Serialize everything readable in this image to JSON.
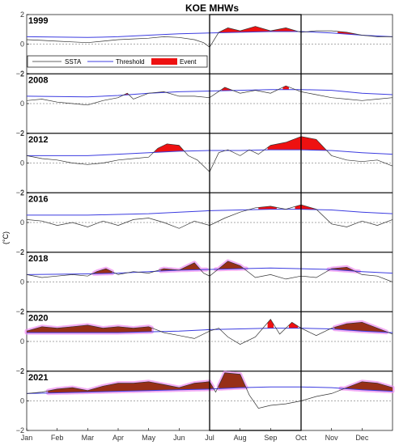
{
  "chart_data": {
    "type": "area",
    "title": "KOE MHWs",
    "ylabel": "(°C)",
    "ylim": [
      -2,
      2
    ],
    "yticks": [
      -2,
      0,
      2
    ],
    "x_ticklabels": [
      "Jan",
      "Feb",
      "Mar",
      "Apr",
      "May",
      "Jun",
      "Jul",
      "Aug",
      "Sep",
      "Oct",
      "Nov",
      "Dec"
    ],
    "legend": [
      "SSTA",
      "Threshold",
      "Event"
    ],
    "legend_position": "inside-left (first panel)",
    "highlight_box": {
      "from": "Jul",
      "to": "Oct"
    },
    "colors": {
      "ssta": "#333333",
      "threshold": "#3c3ce0",
      "event": "#ee1111",
      "event_overlay": "#7a3a1a",
      "halo": "#f08cf0"
    },
    "x_unit": "month (0 = Jan 1, 12 = Dec 31)",
    "panels": [
      {
        "year": "1999",
        "ssta": [
          [
            0,
            0.3
          ],
          [
            0.5,
            0.25
          ],
          [
            1,
            0.2
          ],
          [
            1.5,
            0.15
          ],
          [
            2,
            0.1
          ],
          [
            2.5,
            0.2
          ],
          [
            3,
            0.3
          ],
          [
            3.5,
            0.35
          ],
          [
            4,
            0.4
          ],
          [
            4.5,
            0.5
          ],
          [
            5,
            0.45
          ],
          [
            5.5,
            0.3
          ],
          [
            5.8,
            0.1
          ],
          [
            6,
            -0.2
          ],
          [
            6.3,
            0.8
          ],
          [
            6.6,
            1.1
          ],
          [
            7,
            0.9
          ],
          [
            7.5,
            1.2
          ],
          [
            8,
            0.9
          ],
          [
            8.5,
            1.1
          ],
          [
            9,
            0.8
          ],
          [
            9.5,
            0.9
          ],
          [
            10,
            0.9
          ],
          [
            10.5,
            0.8
          ],
          [
            11,
            0.6
          ],
          [
            11.5,
            0.5
          ],
          [
            12,
            0.5
          ]
        ],
        "threshold": [
          [
            0,
            0.5
          ],
          [
            2,
            0.45
          ],
          [
            3,
            0.5
          ],
          [
            4,
            0.6
          ],
          [
            5,
            0.7
          ],
          [
            6,
            0.75
          ],
          [
            7,
            0.8
          ],
          [
            8,
            0.85
          ],
          [
            9,
            0.85
          ],
          [
            10,
            0.75
          ],
          [
            11,
            0.6
          ],
          [
            12,
            0.5
          ]
        ],
        "events": [
          {
            "from": 6.3,
            "to": 9.1
          },
          {
            "from": 10.2,
            "to": 10.8
          }
        ],
        "overlay": []
      },
      {
        "year": "2008",
        "ssta": [
          [
            0,
            0.2
          ],
          [
            0.5,
            0.3
          ],
          [
            1,
            0.1
          ],
          [
            1.5,
            0.0
          ],
          [
            2,
            -0.1
          ],
          [
            2.5,
            0.2
          ],
          [
            3,
            0.4
          ],
          [
            3.3,
            0.7
          ],
          [
            3.5,
            0.3
          ],
          [
            4,
            0.7
          ],
          [
            4.5,
            0.8
          ],
          [
            5,
            0.5
          ],
          [
            5.5,
            0.5
          ],
          [
            6,
            0.4
          ],
          [
            6.5,
            1.1
          ],
          [
            7,
            0.7
          ],
          [
            7.5,
            0.9
          ],
          [
            8,
            0.7
          ],
          [
            8.5,
            1.2
          ],
          [
            9,
            0.8
          ],
          [
            9.5,
            0.6
          ],
          [
            10,
            0.4
          ],
          [
            10.5,
            0.3
          ],
          [
            11,
            0.2
          ],
          [
            11.5,
            0.3
          ],
          [
            12,
            0.4
          ]
        ],
        "threshold": [
          [
            0,
            0.5
          ],
          [
            2,
            0.45
          ],
          [
            3,
            0.55
          ],
          [
            4,
            0.7
          ],
          [
            5,
            0.8
          ],
          [
            6,
            0.85
          ],
          [
            7,
            0.9
          ],
          [
            8,
            0.95
          ],
          [
            9,
            0.95
          ],
          [
            10,
            0.9
          ],
          [
            11,
            0.7
          ],
          [
            12,
            0.6
          ]
        ],
        "events": [
          {
            "from": 3.2,
            "to": 3.4
          },
          {
            "from": 4.3,
            "to": 4.7
          },
          {
            "from": 6.4,
            "to": 6.9
          },
          {
            "from": 8.4,
            "to": 8.6
          }
        ],
        "overlay": []
      },
      {
        "year": "2012",
        "ssta": [
          [
            0,
            0.5
          ],
          [
            0.5,
            0.3
          ],
          [
            1,
            0.2
          ],
          [
            1.5,
            0.0
          ],
          [
            2,
            -0.1
          ],
          [
            2.5,
            0.0
          ],
          [
            3,
            0.2
          ],
          [
            3.5,
            0.3
          ],
          [
            4,
            0.4
          ],
          [
            4.3,
            1.0
          ],
          [
            4.6,
            1.3
          ],
          [
            5,
            1.2
          ],
          [
            5.3,
            0.5
          ],
          [
            5.6,
            0.2
          ],
          [
            6,
            -0.6
          ],
          [
            6.3,
            0.7
          ],
          [
            6.6,
            0.9
          ],
          [
            7,
            0.5
          ],
          [
            7.3,
            0.9
          ],
          [
            7.6,
            0.6
          ],
          [
            8,
            1.2
          ],
          [
            8.5,
            1.4
          ],
          [
            9,
            1.8
          ],
          [
            9.5,
            1.6
          ],
          [
            10,
            0.5
          ],
          [
            10.5,
            0.2
          ],
          [
            11,
            0.1
          ],
          [
            11.5,
            0.2
          ],
          [
            12,
            -0.2
          ]
        ],
        "threshold": [
          [
            0,
            0.5
          ],
          [
            2,
            0.5
          ],
          [
            3,
            0.6
          ],
          [
            4,
            0.7
          ],
          [
            5,
            0.8
          ],
          [
            6,
            0.85
          ],
          [
            7,
            0.85
          ],
          [
            8,
            0.9
          ],
          [
            9,
            0.9
          ],
          [
            10,
            0.85
          ],
          [
            11,
            0.7
          ],
          [
            12,
            0.6
          ]
        ],
        "events": [
          {
            "from": 4.2,
            "to": 5.2
          },
          {
            "from": 6.3,
            "to": 6.7
          },
          {
            "from": 7.9,
            "to": 9.9
          }
        ],
        "overlay": []
      },
      {
        "year": "2016",
        "ssta": [
          [
            0,
            0.2
          ],
          [
            0.5,
            0.1
          ],
          [
            1,
            -0.2
          ],
          [
            1.5,
            0.0
          ],
          [
            2,
            -0.3
          ],
          [
            2.5,
            0.1
          ],
          [
            3,
            -0.2
          ],
          [
            3.5,
            0.2
          ],
          [
            4,
            0.3
          ],
          [
            4.5,
            0.0
          ],
          [
            5,
            -0.4
          ],
          [
            5.5,
            0.1
          ],
          [
            6,
            -0.2
          ],
          [
            6.5,
            0.3
          ],
          [
            7,
            0.7
          ],
          [
            7.5,
            1.0
          ],
          [
            8,
            1.1
          ],
          [
            8.5,
            0.9
          ],
          [
            9,
            1.2
          ],
          [
            9.5,
            0.9
          ],
          [
            10,
            -0.1
          ],
          [
            10.5,
            -0.3
          ],
          [
            11,
            0.1
          ],
          [
            11.5,
            -0.2
          ],
          [
            12,
            0.2
          ]
        ],
        "threshold": [
          [
            0,
            0.5
          ],
          [
            2,
            0.5
          ],
          [
            3,
            0.55
          ],
          [
            4,
            0.6
          ],
          [
            5,
            0.7
          ],
          [
            6,
            0.8
          ],
          [
            7,
            0.85
          ],
          [
            8,
            0.9
          ],
          [
            9,
            0.9
          ],
          [
            10,
            0.85
          ],
          [
            11,
            0.7
          ],
          [
            12,
            0.6
          ]
        ],
        "events": [
          {
            "from": 7.6,
            "to": 8.2
          },
          {
            "from": 8.8,
            "to": 9.6
          }
        ],
        "overlay": []
      },
      {
        "year": "2018",
        "ssta": [
          [
            0,
            0.5
          ],
          [
            0.5,
            0.3
          ],
          [
            1,
            0.4
          ],
          [
            1.5,
            0.5
          ],
          [
            2,
            0.4
          ],
          [
            2.3,
            0.7
          ],
          [
            2.6,
            0.9
          ],
          [
            3,
            0.5
          ],
          [
            3.5,
            0.7
          ],
          [
            4,
            0.6
          ],
          [
            4.5,
            0.9
          ],
          [
            5,
            0.8
          ],
          [
            5.5,
            1.3
          ],
          [
            5.8,
            0.6
          ],
          [
            6,
            0.4
          ],
          [
            6.3,
            0.9
          ],
          [
            6.6,
            1.4
          ],
          [
            7,
            1.1
          ],
          [
            7.5,
            0.3
          ],
          [
            8,
            0.5
          ],
          [
            8.5,
            0.2
          ],
          [
            9,
            0.4
          ],
          [
            9.5,
            0.3
          ],
          [
            10,
            0.9
          ],
          [
            10.5,
            1.0
          ],
          [
            11,
            0.5
          ],
          [
            11.5,
            0.4
          ],
          [
            12,
            0.0
          ]
        ],
        "threshold": [
          [
            0,
            0.5
          ],
          [
            2,
            0.55
          ],
          [
            3,
            0.6
          ],
          [
            4,
            0.7
          ],
          [
            5,
            0.8
          ],
          [
            6,
            0.85
          ],
          [
            7,
            0.9
          ],
          [
            8,
            0.95
          ],
          [
            9,
            0.9
          ],
          [
            10,
            0.85
          ],
          [
            11,
            0.7
          ],
          [
            12,
            0.6
          ]
        ],
        "events": [
          {
            "from": 2.2,
            "to": 2.8
          },
          {
            "from": 4.4,
            "to": 5.9
          },
          {
            "from": 6.2,
            "to": 7.2
          },
          {
            "from": 9.9,
            "to": 10.9
          }
        ],
        "overlay": [
          {
            "from": 2.2,
            "to": 2.8
          },
          {
            "from": 4.4,
            "to": 5.9
          },
          {
            "from": 6.2,
            "to": 7.2
          },
          {
            "from": 9.9,
            "to": 10.9
          }
        ]
      },
      {
        "year": "2020",
        "ssta": [
          [
            0,
            0.7
          ],
          [
            0.5,
            1.0
          ],
          [
            1,
            0.9
          ],
          [
            1.5,
            1.0
          ],
          [
            2,
            1.1
          ],
          [
            2.5,
            0.9
          ],
          [
            3,
            1.0
          ],
          [
            3.5,
            0.9
          ],
          [
            4,
            1.0
          ],
          [
            4.5,
            0.6
          ],
          [
            5,
            0.4
          ],
          [
            5.5,
            0.2
          ],
          [
            6,
            0.7
          ],
          [
            6.3,
            0.9
          ],
          [
            6.6,
            0.3
          ],
          [
            7,
            -0.2
          ],
          [
            7.5,
            0.3
          ],
          [
            8,
            1.5
          ],
          [
            8.3,
            0.5
          ],
          [
            8.7,
            1.3
          ],
          [
            9,
            0.9
          ],
          [
            9.5,
            0.4
          ],
          [
            10,
            0.9
          ],
          [
            10.5,
            1.2
          ],
          [
            11,
            1.3
          ],
          [
            11.5,
            0.9
          ],
          [
            12,
            0.5
          ]
        ],
        "threshold": [
          [
            0,
            0.6
          ],
          [
            2,
            0.6
          ],
          [
            3,
            0.6
          ],
          [
            4,
            0.65
          ],
          [
            5,
            0.7
          ],
          [
            6,
            0.8
          ],
          [
            7,
            0.85
          ],
          [
            8,
            0.9
          ],
          [
            9,
            0.9
          ],
          [
            10,
            0.85
          ],
          [
            11,
            0.7
          ],
          [
            12,
            0.6
          ]
        ],
        "events": [
          {
            "from": 0,
            "to": 4.1
          },
          {
            "from": 7.9,
            "to": 8.1
          },
          {
            "from": 8.6,
            "to": 8.9
          },
          {
            "from": 10.1,
            "to": 11.8
          }
        ],
        "overlay": [
          {
            "from": 0,
            "to": 4.1
          },
          {
            "from": 10.1,
            "to": 11.8
          }
        ]
      },
      {
        "year": "2021",
        "ssta": [
          [
            0,
            0.5
          ],
          [
            0.5,
            0.6
          ],
          [
            1,
            0.8
          ],
          [
            1.5,
            0.9
          ],
          [
            2,
            0.7
          ],
          [
            2.5,
            1.0
          ],
          [
            3,
            1.2
          ],
          [
            3.5,
            1.2
          ],
          [
            4,
            1.3
          ],
          [
            4.5,
            1.1
          ],
          [
            5,
            0.9
          ],
          [
            5.5,
            1.2
          ],
          [
            6,
            1.3
          ],
          [
            6.2,
            0.6
          ],
          [
            6.5,
            1.9
          ],
          [
            7,
            1.8
          ],
          [
            7.3,
            0.4
          ],
          [
            7.6,
            -0.5
          ],
          [
            8,
            -0.3
          ],
          [
            8.5,
            -0.2
          ],
          [
            9,
            0.0
          ],
          [
            9.5,
            0.3
          ],
          [
            10,
            0.5
          ],
          [
            10.5,
            0.9
          ],
          [
            11,
            1.3
          ],
          [
            11.5,
            1.2
          ],
          [
            12,
            0.9
          ]
        ],
        "threshold": [
          [
            0,
            0.5
          ],
          [
            1,
            0.55
          ],
          [
            2,
            0.6
          ],
          [
            3,
            0.65
          ],
          [
            4,
            0.7
          ],
          [
            5,
            0.75
          ],
          [
            6,
            0.8
          ],
          [
            7,
            0.9
          ],
          [
            8,
            0.95
          ],
          [
            9,
            0.95
          ],
          [
            10,
            0.9
          ],
          [
            11,
            0.75
          ],
          [
            12,
            0.65
          ]
        ],
        "events": [
          {
            "from": 0.7,
            "to": 6.1
          },
          {
            "from": 6.3,
            "to": 7.2
          },
          {
            "from": 10.3,
            "to": 12
          }
        ],
        "overlay": [
          {
            "from": 0.7,
            "to": 6.1
          },
          {
            "from": 6.3,
            "to": 7.2
          },
          {
            "from": 10.3,
            "to": 12
          }
        ]
      }
    ]
  }
}
